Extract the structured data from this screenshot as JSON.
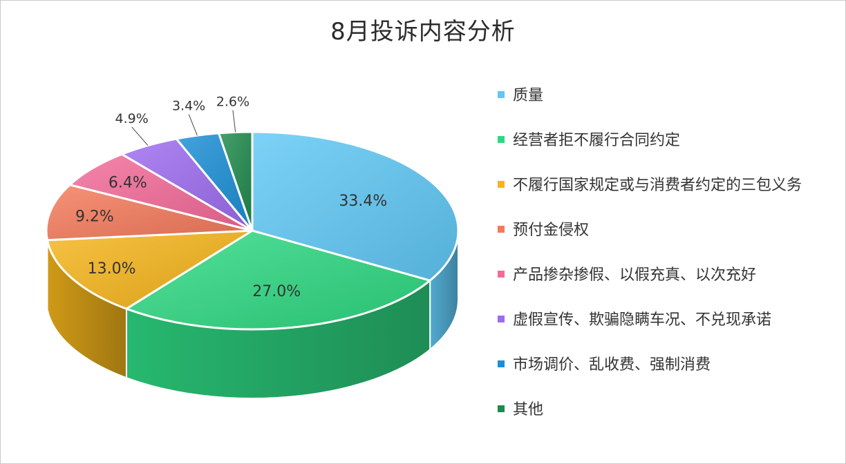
{
  "chart_data": {
    "type": "pie",
    "title": "8月投诉内容分析",
    "unit": "%",
    "legend_position": "right",
    "labels": [
      "质量",
      "经营者拒不履行合同约定",
      "不履行国家规定或与消费者约定的三包义务",
      "预付金侵权",
      "产品掺杂掺假、以假充真、以次充好",
      "虚假宣传、欺骗隐瞒车况、不兑现承诺",
      "市场调价、乱收费、强制消费",
      "其他"
    ],
    "values": [
      33.4,
      27.0,
      13.0,
      9.2,
      6.4,
      4.9,
      3.4,
      2.6
    ],
    "value_labels": [
      "33.4%",
      "27.0%",
      "13.0%",
      "9.2%",
      "6.4%",
      "4.9%",
      "3.4%",
      "2.6%"
    ],
    "colors": [
      "#5fc8f5",
      "#2ed982",
      "#f5b51a",
      "#f47a5a",
      "#f46a98",
      "#9d6cf0",
      "#1a8fd6",
      "#1f8a4c"
    ]
  }
}
